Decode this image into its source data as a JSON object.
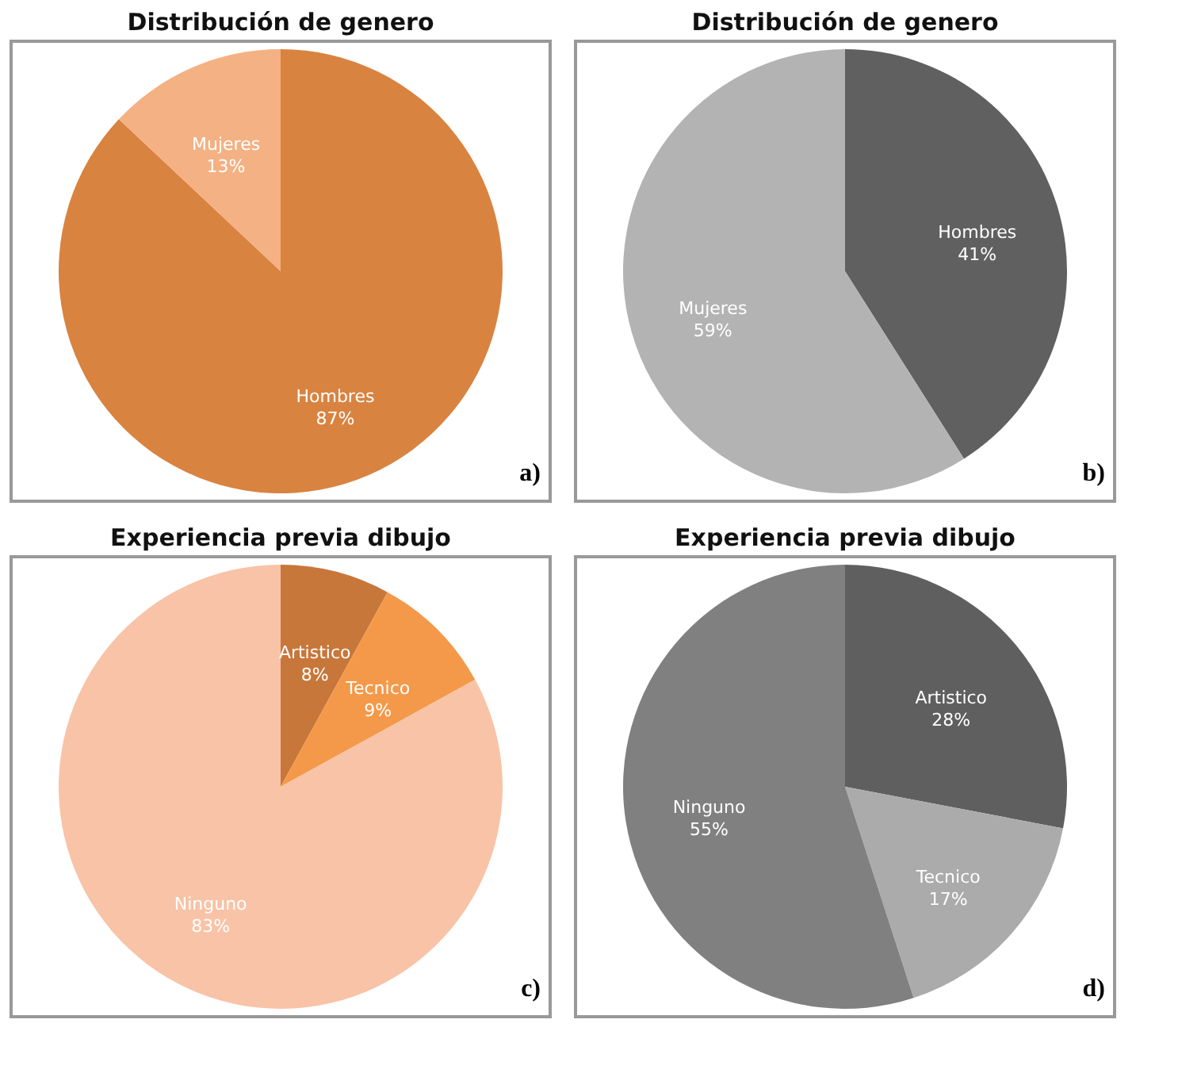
{
  "chart_data": [
    {
      "type": "pie",
      "title": "Distribución de genero",
      "categories": [
        "Hombres",
        "Mujeres"
      ],
      "values": [
        87,
        13
      ],
      "value_labels": [
        "87%",
        "13%"
      ],
      "colors": [
        "#d98340",
        "#f4b183"
      ],
      "annotations": [
        "a)"
      ]
    },
    {
      "type": "pie",
      "title": "Distribución de genero",
      "categories": [
        "Hombres",
        "Mujeres"
      ],
      "values": [
        41,
        59
      ],
      "value_labels": [
        "41%",
        "59%"
      ],
      "colors": [
        "#606060",
        "#b3b3b3"
      ],
      "annotations": [
        "b)"
      ]
    },
    {
      "type": "pie",
      "title": "Experiencia previa dibujo",
      "categories": [
        "Artistico",
        "Tecnico",
        "Ninguno"
      ],
      "values": [
        8,
        9,
        83
      ],
      "value_labels": [
        "8%",
        "9%",
        "83%"
      ],
      "colors": [
        "#c8773a",
        "#f4994a",
        "#f8c3a6"
      ],
      "annotations": [
        "c)"
      ]
    },
    {
      "type": "pie",
      "title": "Experiencia previa dibujo",
      "categories": [
        "Artistico",
        "Tecnico",
        "Ninguno"
      ],
      "values": [
        28,
        17,
        55
      ],
      "value_labels": [
        "28%",
        "17%",
        "55%"
      ],
      "colors": [
        "#5f5f5f",
        "#ababab",
        "#808080"
      ],
      "annotations": [
        "d)"
      ]
    }
  ]
}
